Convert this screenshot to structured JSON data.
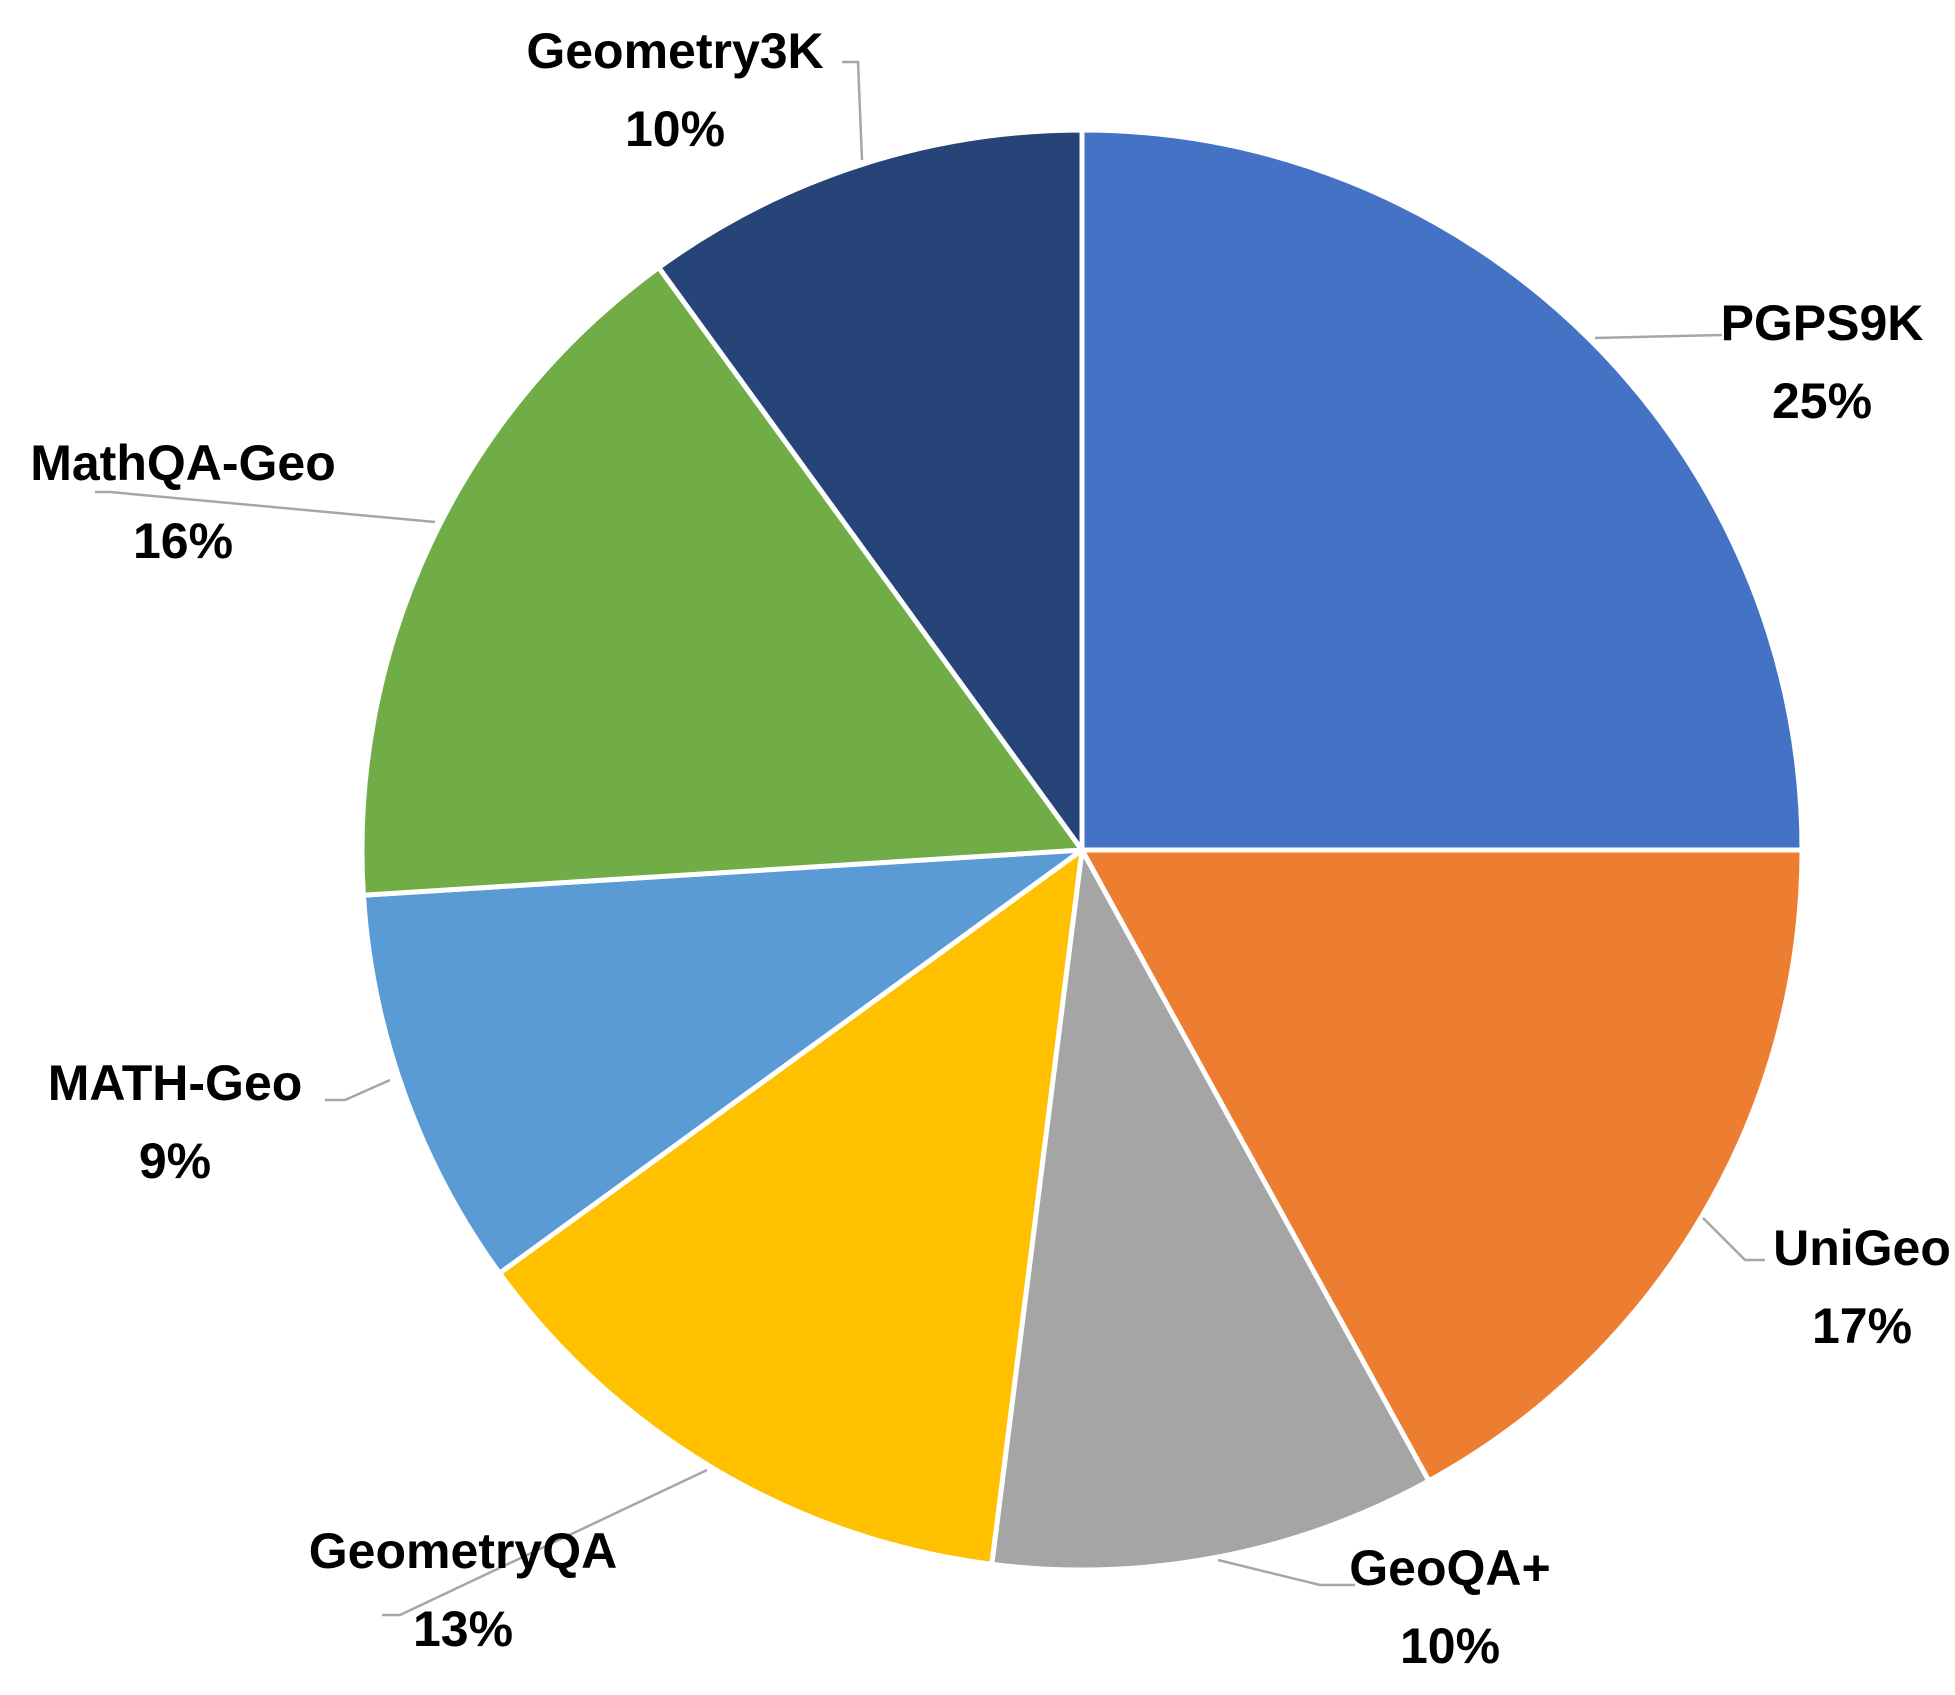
{
  "chart_data": {
    "type": "pie",
    "title": "",
    "slices": [
      {
        "label": "PGPS9K",
        "value": 25,
        "value_label": "25%",
        "color": "#4472C4"
      },
      {
        "label": "UniGeo",
        "value": 17,
        "value_label": "17%",
        "color": "#ED7D31"
      },
      {
        "label": "GeoQA+",
        "value": 10,
        "value_label": "10%",
        "color": "#A5A5A5"
      },
      {
        "label": "GeometryQA",
        "value": 13,
        "value_label": "13%",
        "color": "#FFC000"
      },
      {
        "label": "MATH-Geo",
        "value": 9,
        "value_label": "9%",
        "color": "#5B9BD5"
      },
      {
        "label": "MathQA-Geo",
        "value": 16,
        "value_label": "16%",
        "color": "#70AD47"
      },
      {
        "label": "Geometry3K",
        "value": 10,
        "value_label": "10%",
        "color": "#264478"
      }
    ],
    "start_position": "12 o'clock",
    "direction": "clockwise",
    "legend": "none",
    "data_labels": "outside with leader lines"
  }
}
